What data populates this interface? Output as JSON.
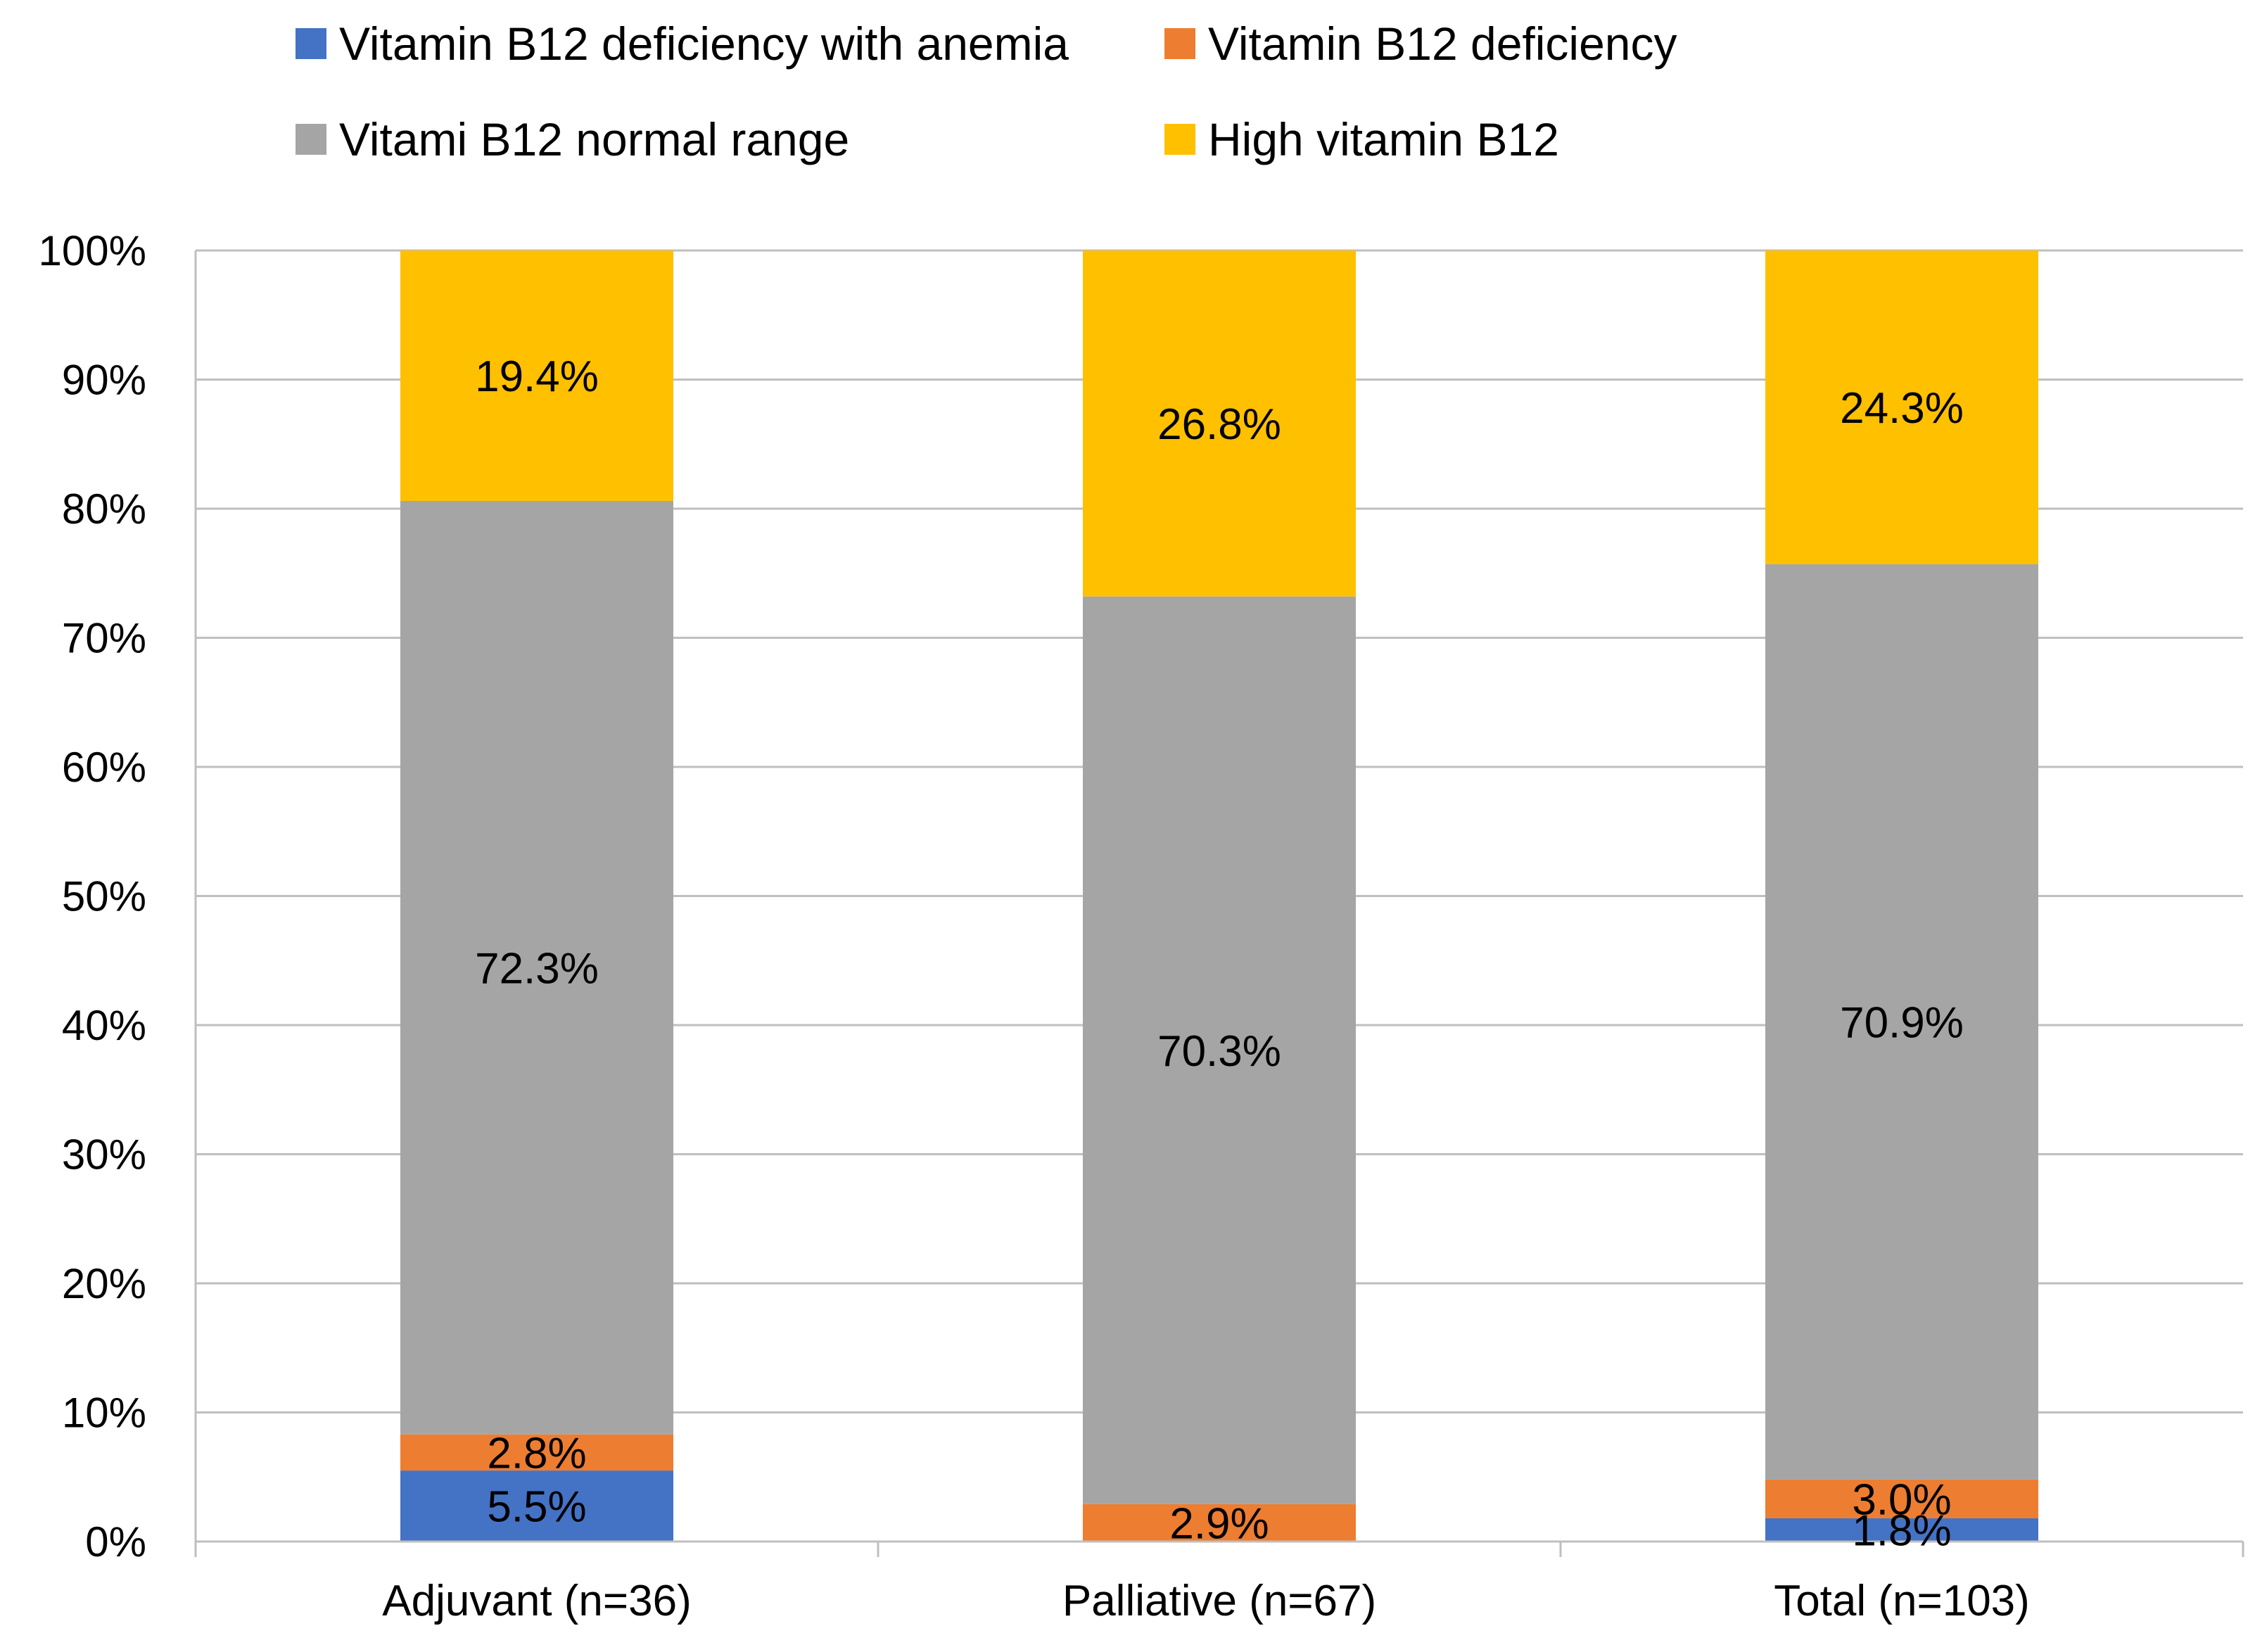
{
  "chart_data": {
    "type": "bar",
    "stacked": true,
    "percent_stacked": true,
    "categories": [
      "Adjuvant (n=36)",
      "Palliative (n=67)",
      "Total (n=103)"
    ],
    "series": [
      {
        "name": "Vitamin B12 deficiency with anemia",
        "color": "#4472C4",
        "values": [
          5.5,
          0,
          1.8
        ],
        "labels": [
          "5.5%",
          "",
          "1.8%"
        ]
      },
      {
        "name": "Vitamin B12 deficiency",
        "color": "#ED7D31",
        "values": [
          2.8,
          2.9,
          3.0
        ],
        "labels": [
          "2.8%",
          "2.9%",
          "3.0%"
        ]
      },
      {
        "name": "Vitami B12 normal range",
        "color": "#A5A5A5",
        "values": [
          72.3,
          70.3,
          70.9
        ],
        "labels": [
          "72.3%",
          "70.3%",
          "70.9%"
        ]
      },
      {
        "name": "High vitamin B12",
        "color": "#FFC000",
        "values": [
          19.4,
          26.8,
          24.3
        ],
        "labels": [
          "19.4%",
          "26.8%",
          "24.3%"
        ]
      }
    ],
    "y_ticks": [
      "0%",
      "10%",
      "20%",
      "30%",
      "40%",
      "50%",
      "60%",
      "70%",
      "80%",
      "90%",
      "100%"
    ],
    "ylim": [
      0,
      100
    ],
    "grid": true,
    "legend_position": "top"
  }
}
